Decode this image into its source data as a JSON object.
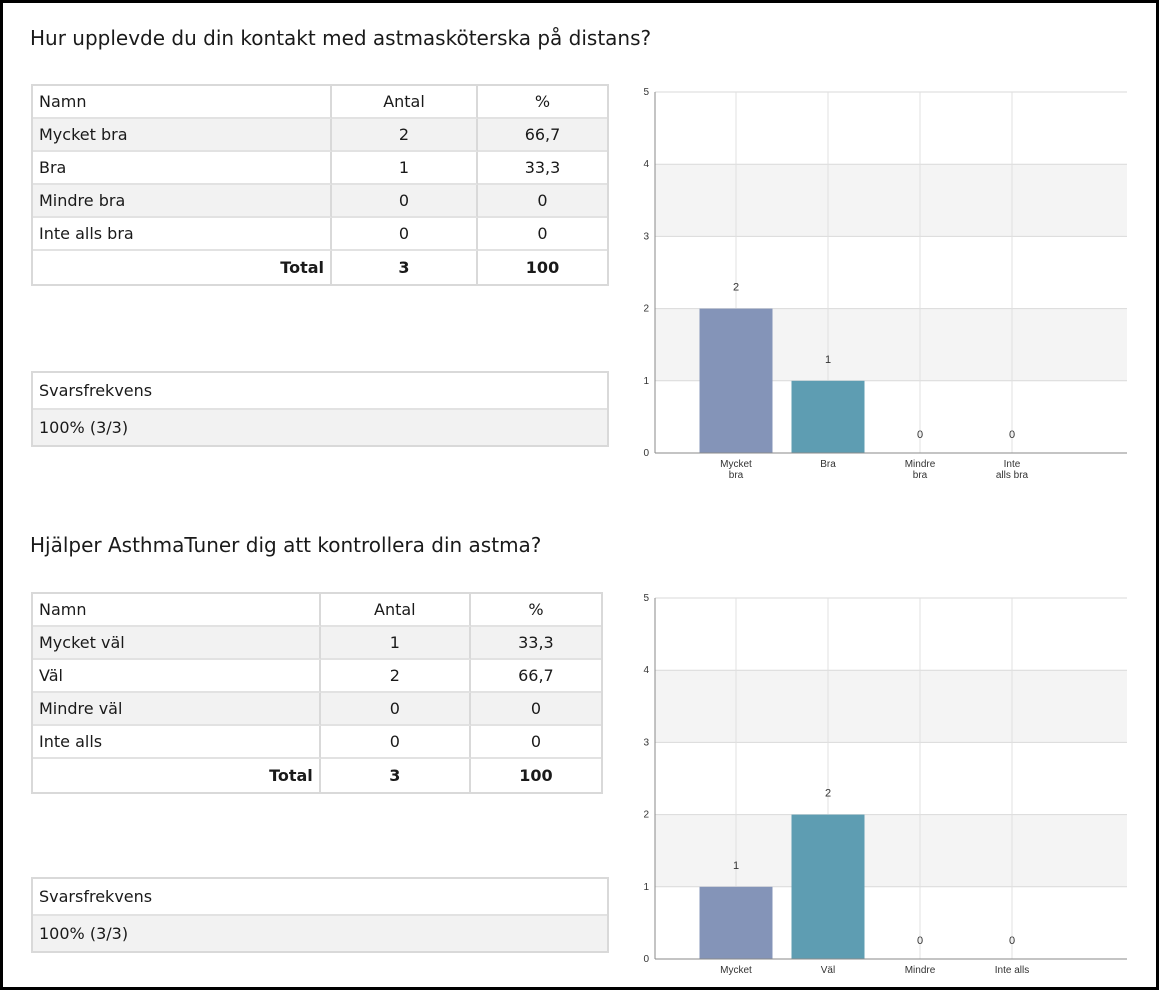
{
  "questions": [
    {
      "title": "Hur upplevde du din kontakt med astmasköterska på distans?",
      "table": {
        "headers": [
          "Namn",
          "Antal",
          "%"
        ],
        "rows": [
          {
            "name": "Mycket bra",
            "count": "2",
            "pct": "66,7"
          },
          {
            "name": "Bra",
            "count": "1",
            "pct": "33,3"
          },
          {
            "name": "Mindre bra",
            "count": "0",
            "pct": "0"
          },
          {
            "name": "Inte alls bra",
            "count": "0",
            "pct": "0"
          }
        ],
        "total": {
          "label": "Total",
          "count": "3",
          "pct": "100"
        }
      },
      "response_rate": {
        "label": "Svarsfrekvens",
        "value": "100% (3/3)"
      }
    },
    {
      "title": "Hjälper AsthmaTuner dig att kontrollera din astma?",
      "table": {
        "headers": [
          "Namn",
          "Antal",
          "%"
        ],
        "rows": [
          {
            "name": "Mycket väl",
            "count": "1",
            "pct": "33,3"
          },
          {
            "name": "Väl",
            "count": "2",
            "pct": "66,7"
          },
          {
            "name": "Mindre väl",
            "count": "0",
            "pct": "0"
          },
          {
            "name": "Inte alls",
            "count": "0",
            "pct": "0"
          }
        ],
        "total": {
          "label": "Total",
          "count": "3",
          "pct": "100"
        }
      },
      "response_rate": {
        "label": "Svarsfrekvens",
        "value": "100% (3/3)"
      }
    }
  ],
  "chart_data": [
    {
      "type": "bar",
      "categories": [
        [
          "Mycket",
          "bra"
        ],
        [
          "Bra"
        ],
        [
          "Mindre",
          "bra"
        ],
        [
          "Inte",
          "alls bra"
        ]
      ],
      "values": [
        2,
        1,
        0,
        0
      ],
      "ylim": [
        0,
        5
      ],
      "yticks": [
        "0",
        "1",
        "2",
        "3",
        "4",
        "5"
      ],
      "data_labels": [
        "2",
        "1",
        "0",
        "0"
      ],
      "bar_colors": [
        "#8494b8",
        "#5e9db2",
        "#8494b8",
        "#5e9db2"
      ],
      "grid": true
    },
    {
      "type": "bar",
      "categories": [
        [
          "Mycket"
        ],
        [
          "Väl"
        ],
        [
          "Mindre"
        ],
        [
          "Inte alls"
        ]
      ],
      "values": [
        1,
        2,
        0,
        0
      ],
      "ylim": [
        0,
        5
      ],
      "yticks": [
        "0",
        "1",
        "2",
        "3",
        "4",
        "5"
      ],
      "data_labels": [
        "1",
        "2",
        "0",
        "0"
      ],
      "bar_colors": [
        "#8494b8",
        "#5e9db2",
        "#8494b8",
        "#5e9db2"
      ],
      "grid": true
    }
  ]
}
